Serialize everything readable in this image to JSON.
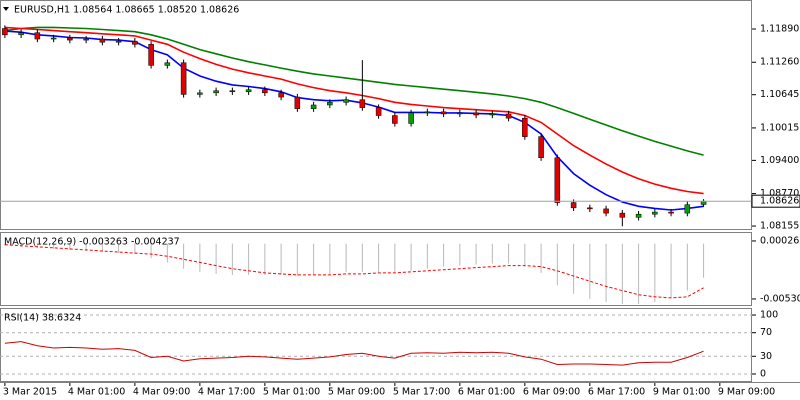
{
  "chart_data": [
    {
      "type": "candlestick",
      "title": "EURUSD,H1  1.08564 1.08665 1.08520 1.08626",
      "xlim": [
        -0.3,
        45.98
      ],
      "ylim": [
        1.0808,
        1.1244
      ],
      "yticks": [
        {
          "value": 1.1189,
          "label": "1.11890"
        },
        {
          "value": 1.1126,
          "label": "1.11260"
        },
        1.10645,
        1.10015,
        {
          "value": 1.094,
          "label": "1.09400"
        },
        {
          "value": 1.0877,
          "label": "1.08770"
        },
        1.08155
      ],
      "xticks": [
        {
          "value": 0,
          "label": "3 Mar 2015"
        },
        {
          "value": 4,
          "label": "4 Mar 01:00"
        },
        {
          "value": 8,
          "label": "4 Mar 09:00"
        },
        {
          "value": 12,
          "label": "4 Mar 17:00"
        },
        {
          "value": 16,
          "label": "5 Mar 01:00"
        },
        {
          "value": 20,
          "label": "5 Mar 09:00"
        },
        {
          "value": 24,
          "label": "5 Mar 17:00"
        },
        {
          "value": 28,
          "label": "6 Mar 01:00"
        },
        {
          "value": 32,
          "label": "6 Mar 09:00"
        },
        {
          "value": 36,
          "label": "6 Mar 17:00"
        },
        {
          "value": 40,
          "label": "9 Mar 01:00"
        },
        {
          "value": 44,
          "label": "9 Mar 09:00"
        }
      ],
      "up_color": "#00a000",
      "down_color": "#e00000",
      "last_price_line": true,
      "open": [
        1.119,
        1.1178,
        1.1182,
        1.117,
        1.1172,
        1.1168,
        1.117,
        1.1164,
        1.1166,
        1.116,
        1.112,
        1.1125,
        1.1065,
        1.1068,
        1.1072,
        1.107,
        1.1074,
        1.1068,
        1.106,
        1.1038,
        1.1045,
        1.105,
        1.1055,
        1.104,
        1.1025,
        1.101,
        1.103,
        1.1032,
        1.1028,
        1.103,
        1.1026,
        1.1028,
        1.102,
        1.0985,
        1.0945,
        1.086,
        1.085,
        1.0848,
        1.084,
        1.0832,
        1.0838,
        1.0842,
        1.084,
        1.08564
      ],
      "high": [
        1.1196,
        1.1188,
        1.1188,
        1.1178,
        1.1178,
        1.1176,
        1.1176,
        1.1172,
        1.1172,
        1.1166,
        1.1131,
        1.1131,
        1.1074,
        1.1078,
        1.1078,
        1.108,
        1.108,
        1.1074,
        1.1066,
        1.1051,
        1.1056,
        1.1061,
        1.113,
        1.1046,
        1.1031,
        1.1036,
        1.1038,
        1.1038,
        1.1036,
        1.1036,
        1.1034,
        1.1034,
        1.1026,
        1.0991,
        1.0951,
        1.0866,
        1.0856,
        1.0854,
        1.0846,
        1.0844,
        1.0848,
        1.0848,
        1.0862,
        1.08665
      ],
      "low": [
        1.1172,
        1.1172,
        1.1164,
        1.1164,
        1.1162,
        1.1162,
        1.1158,
        1.1158,
        1.1154,
        1.1114,
        1.1114,
        1.1059,
        1.1059,
        1.1062,
        1.1064,
        1.1064,
        1.1062,
        1.1054,
        1.1032,
        1.1032,
        1.1039,
        1.1044,
        1.1034,
        1.1019,
        1.1004,
        1.1004,
        1.1024,
        1.1022,
        1.1022,
        1.102,
        1.102,
        1.1014,
        1.0979,
        1.0939,
        1.0854,
        1.0844,
        1.0842,
        1.0834,
        1.0815,
        1.0826,
        1.0832,
        1.0834,
        1.0834,
        1.0852
      ],
      "close": [
        1.1178,
        1.1182,
        1.117,
        1.1172,
        1.1168,
        1.117,
        1.1164,
        1.1166,
        1.116,
        1.112,
        1.1125,
        1.1065,
        1.1068,
        1.1072,
        1.107,
        1.1074,
        1.1068,
        1.106,
        1.1038,
        1.1045,
        1.105,
        1.1055,
        1.104,
        1.1025,
        1.101,
        1.103,
        1.1032,
        1.1028,
        1.103,
        1.1026,
        1.1028,
        1.102,
        1.0985,
        1.0945,
        1.086,
        1.085,
        1.0848,
        1.084,
        1.0832,
        1.0838,
        1.0842,
        1.084,
        1.0856,
        1.08626
      ],
      "series": [
        {
          "color": "#008000",
          "values": [
            1.1186,
            1.119,
            1.1192,
            1.1192,
            1.1191,
            1.119,
            1.1188,
            1.1186,
            1.1184,
            1.1178,
            1.117,
            1.116,
            1.115,
            1.1142,
            1.1134,
            1.1127,
            1.1121,
            1.1115,
            1.1109,
            1.1104,
            1.11,
            1.1096,
            1.1092,
            1.1088,
            1.1084,
            1.1081,
            1.1078,
            1.1075,
            1.1072,
            1.1069,
            1.1066,
            1.1062,
            1.1057,
            1.105,
            1.104,
            1.1029,
            1.1018,
            1.1007,
            1.0996,
            1.0986,
            1.0976,
            1.0967,
            1.0958,
            1.095
          ]
        },
        {
          "color": "#ff0000",
          "values": [
            1.1192,
            1.119,
            1.1188,
            1.1186,
            1.1184,
            1.1182,
            1.118,
            1.1178,
            1.1176,
            1.1168,
            1.116,
            1.1145,
            1.1133,
            1.1122,
            1.1113,
            1.1106,
            1.11,
            1.1094,
            1.1085,
            1.1078,
            1.1072,
            1.1068,
            1.1063,
            1.1057,
            1.105,
            1.1046,
            1.1043,
            1.104,
            1.1038,
            1.1036,
            1.1034,
            1.1032,
            1.1025,
            1.1012,
            1.099,
            1.0968,
            1.095,
            1.0933,
            1.0918,
            1.0905,
            1.0895,
            1.0887,
            1.0881,
            1.0877
          ]
        },
        {
          "color": "#0000ff",
          "values": [
            1.1185,
            1.1183,
            1.1178,
            1.1176,
            1.1173,
            1.1172,
            1.1169,
            1.1168,
            1.1165,
            1.115,
            1.114,
            1.1115,
            1.11,
            1.109,
            1.1083,
            1.108,
            1.1076,
            1.107,
            1.1059,
            1.1055,
            1.1053,
            1.1054,
            1.1049,
            1.1041,
            1.1031,
            1.1031,
            1.1031,
            1.103,
            1.103,
            1.1029,
            1.1028,
            1.1025,
            1.1012,
            1.099,
            1.0947,
            1.0915,
            1.0893,
            1.0875,
            1.0861,
            1.0853,
            1.0849,
            1.0846,
            1.0849,
            1.0853
          ]
        }
      ]
    },
    {
      "type": "macd",
      "title": "MACD(12,26,9) -0.003263 -0.004237",
      "xlim": [
        -0.3,
        45.98
      ],
      "ylim": [
        -0.00598,
        0.00112
      ],
      "yticks": [
        0.000261,
        -0.005304
      ],
      "series": [
        {
          "color": "#b8b8b8",
          "style": "histogram",
          "values": [
            -0.0002,
            -0.0003,
            -0.0004,
            -0.0005,
            -0.0006,
            -0.0007,
            -0.0008,
            -0.0009,
            -0.001,
            -0.0014,
            -0.0018,
            -0.0024,
            -0.0027,
            -0.0029,
            -0.003,
            -0.003,
            -0.003,
            -0.003,
            -0.0031,
            -0.003,
            -0.0029,
            -0.0027,
            -0.0027,
            -0.0027,
            -0.0028,
            -0.0026,
            -0.0024,
            -0.0022,
            -0.0021,
            -0.002,
            -0.0019,
            -0.0019,
            -0.0022,
            -0.0028,
            -0.004,
            -0.0048,
            -0.0053,
            -0.0056,
            -0.0058,
            -0.0058,
            -0.0056,
            -0.0052,
            -0.0045,
            -0.003263
          ]
        },
        {
          "color": "#ff0000",
          "style": "dashed",
          "values": [
            -0.0001,
            -0.0002,
            -0.0003,
            -0.0004,
            -0.0005,
            -0.0006,
            -0.0007,
            -0.0008,
            -0.0009,
            -0.001,
            -0.0012,
            -0.0015,
            -0.0018,
            -0.0021,
            -0.0024,
            -0.0026,
            -0.0028,
            -0.0029,
            -0.003,
            -0.003,
            -0.003,
            -0.0029,
            -0.0029,
            -0.0028,
            -0.0028,
            -0.0027,
            -0.0026,
            -0.0025,
            -0.0024,
            -0.0023,
            -0.0022,
            -0.0021,
            -0.0021,
            -0.0022,
            -0.0026,
            -0.0031,
            -0.0036,
            -0.0041,
            -0.0045,
            -0.0049,
            -0.0051,
            -0.0052,
            -0.0051,
            -0.004237
          ]
        }
      ]
    },
    {
      "type": "line",
      "title": "RSI(14) 38.6324",
      "xlim": [
        -0.3,
        45.98
      ],
      "ylim": [
        -13.6,
        111.9
      ],
      "yticks": [
        100,
        70,
        30,
        0
      ],
      "grid": "dashed",
      "series": [
        {
          "color": "#d00000",
          "values": [
            52,
            55,
            48,
            44,
            45,
            44,
            42,
            43,
            40,
            28,
            30,
            22,
            26,
            27,
            28,
            30,
            29,
            27,
            25,
            27,
            29,
            33,
            35,
            30,
            27,
            35,
            36,
            35,
            37,
            36,
            37,
            35,
            29,
            25,
            16,
            17,
            17,
            16,
            15,
            19,
            20,
            20,
            28,
            38.6324
          ]
        }
      ]
    }
  ]
}
